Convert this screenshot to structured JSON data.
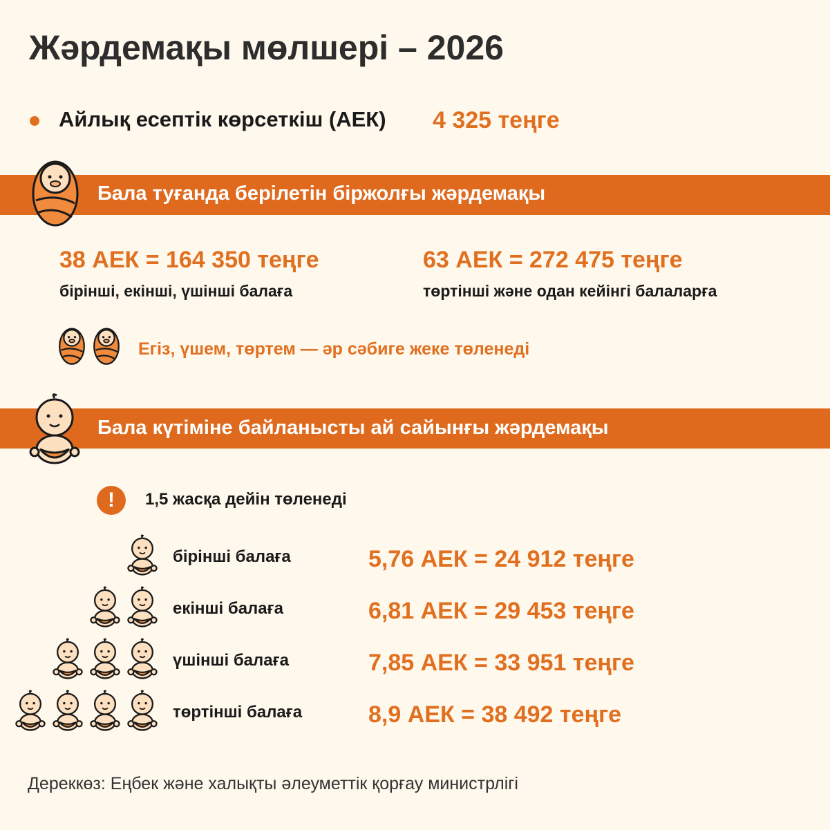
{
  "title": "Жәрдемақы мөлшері – 2026",
  "aek": {
    "label": "Айлық есептік көрсеткіш (АЕК)",
    "value": "4 325 теңге"
  },
  "birth": {
    "heading": "Бала туғанда берілетін біржолғы жәрдемақы",
    "items": [
      {
        "value": "38 АЕК = 164 350 теңге",
        "caption": "бірінші, екінші, үшінші балаға"
      },
      {
        "value": "63 АЕК = 272 475 теңге",
        "caption": "төртінші және одан кейінгі балаларға"
      }
    ],
    "twins_note": "Егіз, үшем, төртем — әр сәбиге жеке төленеді"
  },
  "care": {
    "heading": "Бала күтіміне байланысты ай сайынғы жәрдемақы",
    "warning_icon": "exclamation-icon",
    "note": "1,5 жасқа дейін төленеді",
    "rows": [
      {
        "label": "бірінші балаға",
        "value": "5,76 АЕК = 24 912 теңге",
        "babies": 1
      },
      {
        "label": "екінші балаға",
        "value": "6,81 АЕК = 29 453 теңге",
        "babies": 2
      },
      {
        "label": "үшінші балаға",
        "value": "7,85 АЕК = 33 951 теңге",
        "babies": 3
      },
      {
        "label": "төртінші балаға",
        "value": "8,9 АЕК = 38 492 теңге",
        "babies": 4
      }
    ]
  },
  "source": "Дереккөз: Еңбек және халықты әлеуметтік қорғау министрлігі",
  "colors": {
    "accent": "#df6a1e",
    "background": "#fff8ec",
    "skin": "#fde0c0"
  }
}
